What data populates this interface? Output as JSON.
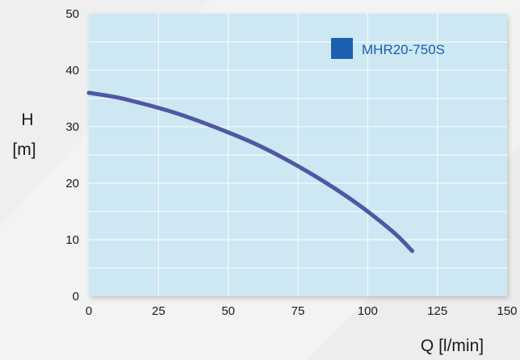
{
  "chart_data": {
    "type": "line",
    "xlabel": "Q [l/min]",
    "ylabel_line1": "H",
    "ylabel_line2": "[m]",
    "xlim": [
      0,
      150
    ],
    "ylim": [
      0,
      50
    ],
    "x_ticks": [
      0,
      25,
      50,
      75,
      100,
      125,
      150
    ],
    "y_ticks": [
      0,
      10,
      20,
      30,
      40,
      50
    ],
    "grid": true,
    "legend_position": "top-right",
    "series": [
      {
        "name": "MHR20-750S",
        "color": "#5057a3",
        "legend_color": "#1a5fb0",
        "x": [
          0,
          10,
          20,
          30,
          40,
          50,
          60,
          70,
          80,
          90,
          100,
          110,
          116
        ],
        "y": [
          36,
          35.2,
          34,
          32.6,
          30.9,
          29,
          26.9,
          24.4,
          21.6,
          18.5,
          15,
          11,
          8
        ]
      }
    ]
  },
  "colors": {
    "plot_background": "#cde7f3",
    "grid_line": "#ffffff",
    "page_background": "#f3f3f3",
    "legend_text": "#1a5fb0",
    "axis_text": "#1a1a1a"
  }
}
